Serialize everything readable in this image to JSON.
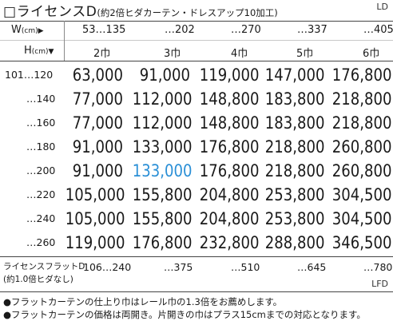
{
  "title": {
    "box": "□",
    "name": "ライセンスD",
    "sub": "(約2倍ヒダカーテン・ドレスアップ10加工)",
    "code": "LD"
  },
  "header": {
    "width_label": "W",
    "width_unit": "(cm)",
    "width_marker": "▶",
    "height_label": "H",
    "height_unit": "(cm)",
    "height_marker": "▼",
    "widths": [
      "53…135",
      "…202",
      "…270",
      "…337",
      "…405"
    ],
    "panels": [
      "2巾",
      "3巾",
      "4巾",
      "5巾",
      "6巾"
    ]
  },
  "rows": [
    {
      "height": "101…120",
      "prices": [
        "63,000",
        "91,000",
        "119,000",
        "147,000",
        "176,800"
      ]
    },
    {
      "height": "…140",
      "prices": [
        "77,000",
        "112,000",
        "148,800",
        "183,800",
        "218,800"
      ]
    },
    {
      "height": "…160",
      "prices": [
        "77,000",
        "112,000",
        "148,800",
        "183,800",
        "218,800"
      ]
    },
    {
      "height": "…180",
      "prices": [
        "91,000",
        "133,000",
        "176,800",
        "218,800",
        "260,800"
      ]
    },
    {
      "height": "…200",
      "prices": [
        "91,000",
        "133,000",
        "176,800",
        "218,800",
        "260,800"
      ]
    },
    {
      "height": "…220",
      "prices": [
        "105,000",
        "155,800",
        "204,800",
        "253,800",
        "304,500"
      ]
    },
    {
      "height": "…240",
      "prices": [
        "105,000",
        "155,800",
        "204,800",
        "253,800",
        "304,500"
      ]
    },
    {
      "height": "…260",
      "prices": [
        "119,000",
        "176,800",
        "232,800",
        "288,800",
        "346,500"
      ]
    }
  ],
  "highlight": {
    "row": 4,
    "col": 1,
    "color": "#2a8fd6"
  },
  "flat": {
    "label": "ライセンスフラットD",
    "sub": "(約1.0倍ヒダなし)",
    "widths": [
      "106…240",
      "…375",
      "…510",
      "…645",
      "…780"
    ],
    "code": "LFD"
  },
  "notes": [
    "●フラットカーテンの仕上り巾はレール巾の1.3倍をお薦めします。",
    "●フラットカーテンの価格は両開き。片開きの巾はプラス15cmまでの対応となります。"
  ]
}
